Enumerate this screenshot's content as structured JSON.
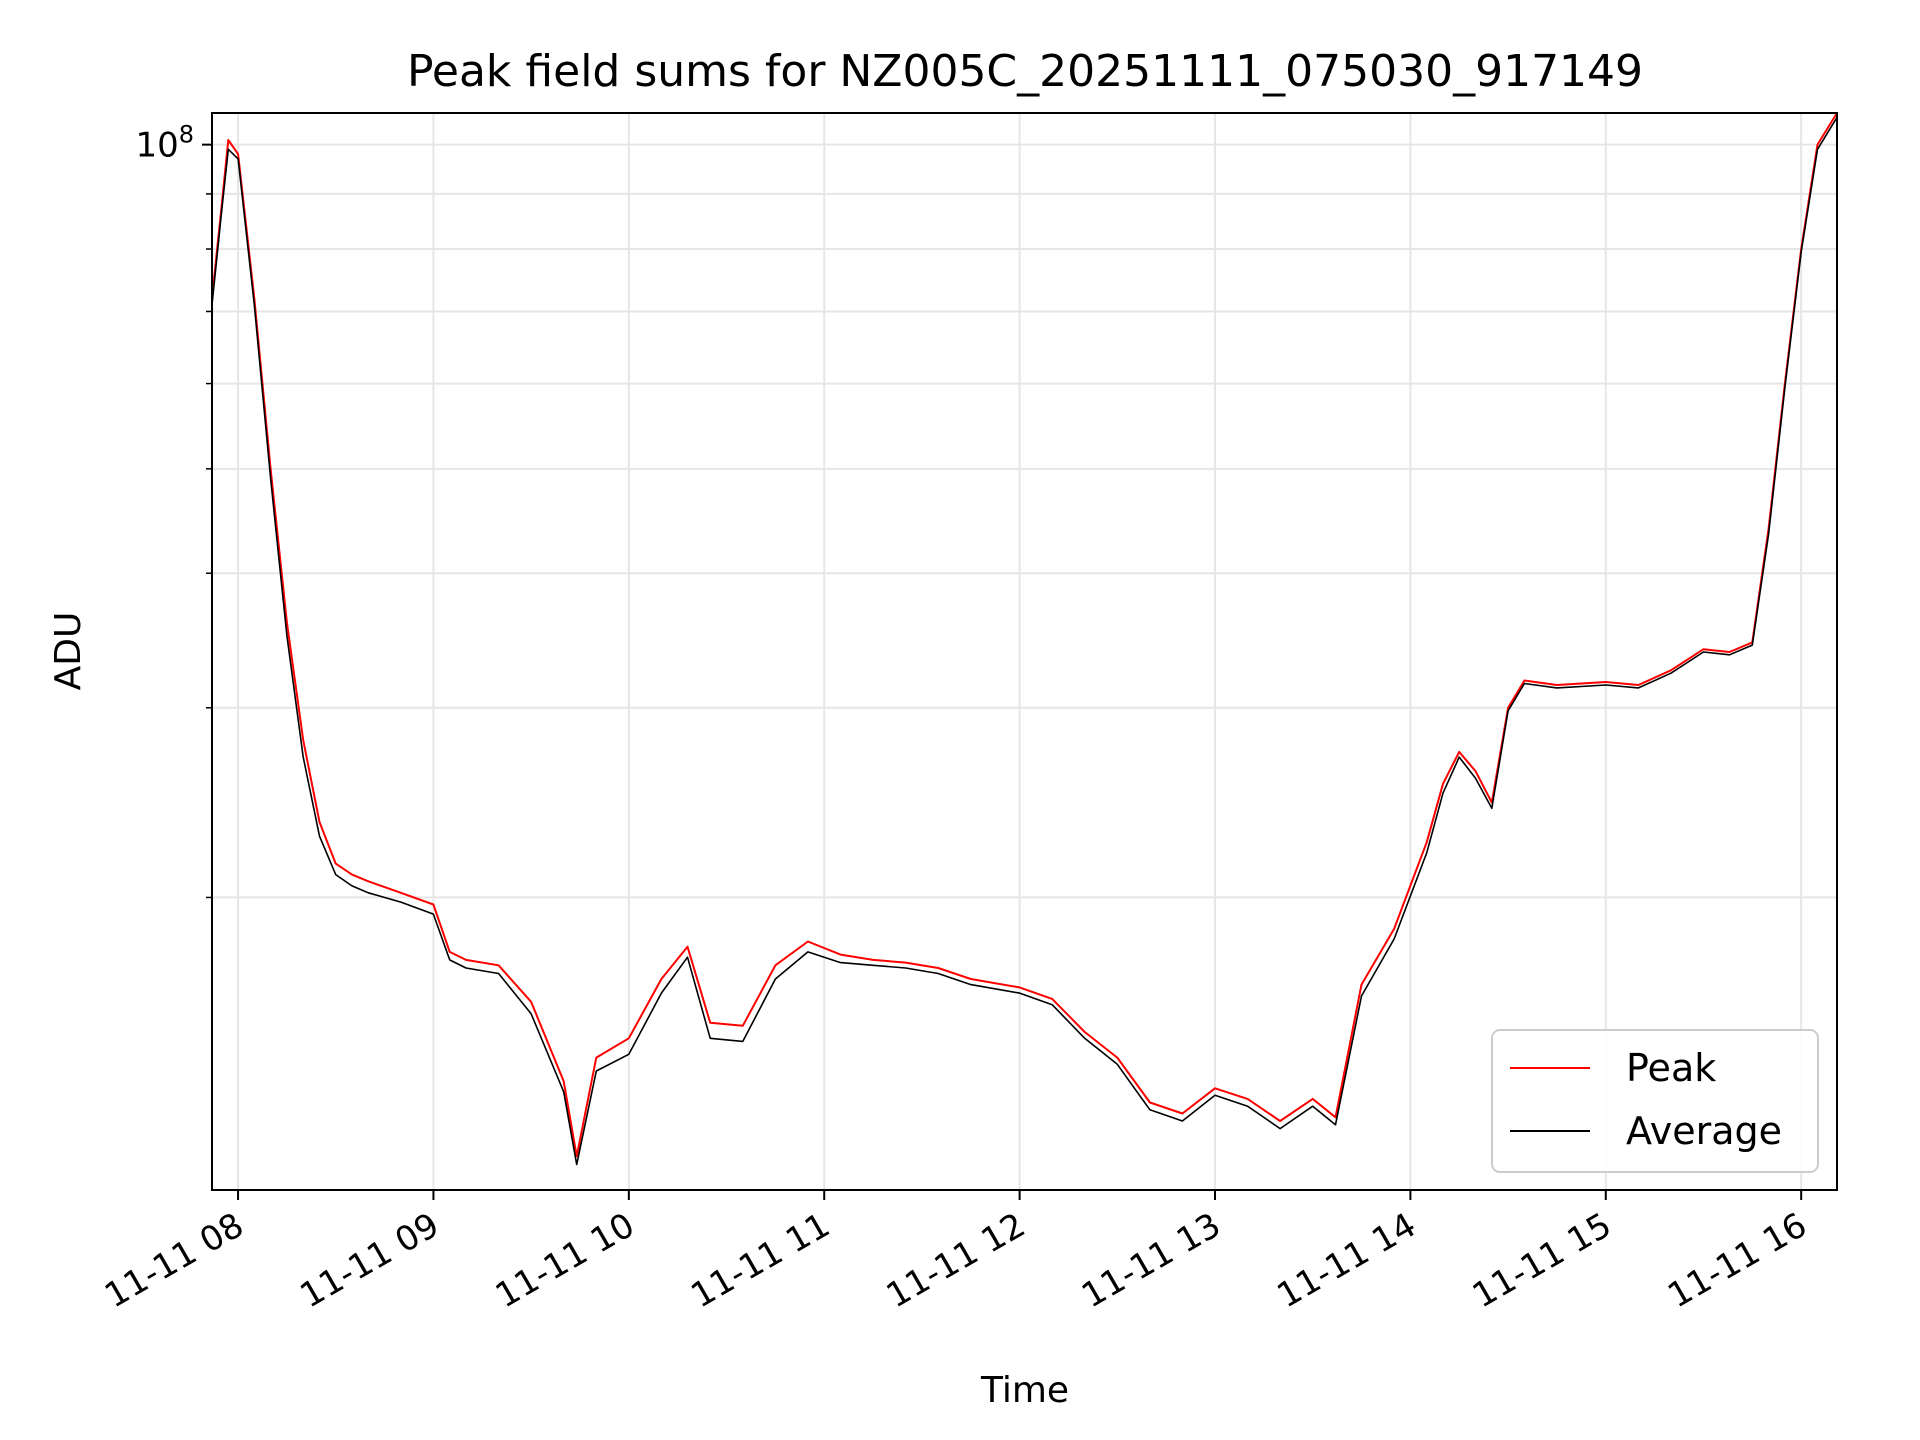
{
  "chart_data": {
    "type": "line",
    "title": "Peak field sums for NZ005C_20251111_075030_917149",
    "xlabel": "Time",
    "ylabel": "ADU",
    "yscale": "log",
    "ylim": [
      10700000,
      107000000
    ],
    "xlim": [
      "2025-11-11 07:52",
      "2025-11-11 16:11"
    ],
    "grid": true,
    "legend_position": "lower-right",
    "x_ticks": [
      "11-11 08",
      "11-11 09",
      "11-11 10",
      "11-11 11",
      "11-11 12",
      "11-11 13",
      "11-11 14",
      "11-11 15",
      "11-11 16"
    ],
    "y_ticks": [
      {
        "base": "10",
        "exp": "8",
        "value": 100000000
      }
    ],
    "series": [
      {
        "name": "Peak",
        "color": "#ff0000",
        "x": [
          "2025-11-11 07:52",
          "2025-11-11 07:55",
          "2025-11-11 07:57",
          "2025-11-11 08:00",
          "2025-11-11 08:05",
          "2025-11-11 08:10",
          "2025-11-11 08:15",
          "2025-11-11 08:20",
          "2025-11-11 08:25",
          "2025-11-11 08:30",
          "2025-11-11 08:35",
          "2025-11-11 08:40",
          "2025-11-11 08:50",
          "2025-11-11 09:00",
          "2025-11-11 09:05",
          "2025-11-11 09:10",
          "2025-11-11 09:20",
          "2025-11-11 09:30",
          "2025-11-11 09:40",
          "2025-11-11 09:44",
          "2025-11-11 09:50",
          "2025-11-11 10:00",
          "2025-11-11 10:10",
          "2025-11-11 10:18",
          "2025-11-11 10:25",
          "2025-11-11 10:35",
          "2025-11-11 10:45",
          "2025-11-11 10:55",
          "2025-11-11 11:05",
          "2025-11-11 11:15",
          "2025-11-11 11:25",
          "2025-11-11 11:35",
          "2025-11-11 11:45",
          "2025-11-11 12:00",
          "2025-11-11 12:10",
          "2025-11-11 12:20",
          "2025-11-11 12:30",
          "2025-11-11 12:40",
          "2025-11-11 12:50",
          "2025-11-11 13:00",
          "2025-11-11 13:10",
          "2025-11-11 13:20",
          "2025-11-11 13:30",
          "2025-11-11 13:37",
          "2025-11-11 13:45",
          "2025-11-11 13:55",
          "2025-11-11 14:05",
          "2025-11-11 14:10",
          "2025-11-11 14:15",
          "2025-11-11 14:20",
          "2025-11-11 14:25",
          "2025-11-11 14:30",
          "2025-11-11 14:35",
          "2025-11-11 14:45",
          "2025-11-11 15:00",
          "2025-11-11 15:10",
          "2025-11-11 15:20",
          "2025-11-11 15:30",
          "2025-11-11 15:38",
          "2025-11-11 15:45",
          "2025-11-11 15:50",
          "2025-11-11 15:55",
          "2025-11-11 16:00",
          "2025-11-11 16:05",
          "2025-11-11 16:11"
        ],
        "values": [
          72000000,
          88000000,
          101000000,
          98000000,
          72000000,
          50000000,
          36000000,
          28000000,
          23500000,
          21500000,
          21000000,
          20700000,
          20200000,
          19700000,
          17800000,
          17500000,
          17300000,
          16000000,
          13500000,
          11500000,
          14200000,
          14800000,
          16800000,
          18000000,
          15300000,
          15200000,
          17300000,
          18200000,
          17700000,
          17500000,
          17400000,
          17200000,
          16800000,
          16500000,
          16100000,
          15000000,
          14200000,
          12900000,
          12600000,
          13300000,
          13000000,
          12400000,
          13000000,
          12500000,
          16600000,
          18700000,
          22500000,
          25500000,
          27300000,
          26200000,
          24500000,
          30000000,
          31800000,
          31500000,
          31700000,
          31500000,
          32500000,
          34000000,
          33800000,
          34500000,
          44000000,
          60000000,
          80000000,
          100000000,
          107000000
        ]
      },
      {
        "name": "Average",
        "color": "#000000",
        "x": [
          "2025-11-11 07:52",
          "2025-11-11 07:55",
          "2025-11-11 07:57",
          "2025-11-11 08:00",
          "2025-11-11 08:05",
          "2025-11-11 08:10",
          "2025-11-11 08:15",
          "2025-11-11 08:20",
          "2025-11-11 08:25",
          "2025-11-11 08:30",
          "2025-11-11 08:35",
          "2025-11-11 08:40",
          "2025-11-11 08:50",
          "2025-11-11 09:00",
          "2025-11-11 09:05",
          "2025-11-11 09:10",
          "2025-11-11 09:20",
          "2025-11-11 09:30",
          "2025-11-11 09:40",
          "2025-11-11 09:44",
          "2025-11-11 09:50",
          "2025-11-11 10:00",
          "2025-11-11 10:10",
          "2025-11-11 10:18",
          "2025-11-11 10:25",
          "2025-11-11 10:35",
          "2025-11-11 10:45",
          "2025-11-11 10:55",
          "2025-11-11 11:05",
          "2025-11-11 11:15",
          "2025-11-11 11:25",
          "2025-11-11 11:35",
          "2025-11-11 11:45",
          "2025-11-11 12:00",
          "2025-11-11 12:10",
          "2025-11-11 12:20",
          "2025-11-11 12:30",
          "2025-11-11 12:40",
          "2025-11-11 12:50",
          "2025-11-11 13:00",
          "2025-11-11 13:10",
          "2025-11-11 13:20",
          "2025-11-11 13:30",
          "2025-11-11 13:37",
          "2025-11-11 13:45",
          "2025-11-11 13:55",
          "2025-11-11 14:05",
          "2025-11-11 14:10",
          "2025-11-11 14:15",
          "2025-11-11 14:20",
          "2025-11-11 14:25",
          "2025-11-11 14:30",
          "2025-11-11 14:35",
          "2025-11-11 14:45",
          "2025-11-11 15:00",
          "2025-11-11 15:10",
          "2025-11-11 15:20",
          "2025-11-11 15:30",
          "2025-11-11 15:38",
          "2025-11-11 15:45",
          "2025-11-11 15:50",
          "2025-11-11 15:55",
          "2025-11-11 16:00",
          "2025-11-11 16:05",
          "2025-11-11 16:11"
        ],
        "values": [
          71000000,
          87000000,
          99000000,
          97000000,
          71000000,
          49000000,
          35000000,
          27000000,
          22800000,
          21000000,
          20500000,
          20200000,
          19800000,
          19300000,
          17500000,
          17200000,
          17000000,
          15600000,
          13200000,
          11300000,
          13800000,
          14300000,
          16300000,
          17600000,
          14800000,
          14700000,
          16800000,
          17800000,
          17400000,
          17300000,
          17200000,
          17000000,
          16600000,
          16300000,
          15900000,
          14800000,
          14000000,
          12700000,
          12400000,
          13100000,
          12800000,
          12200000,
          12800000,
          12300000,
          16200000,
          18300000,
          22000000,
          25000000,
          27000000,
          25800000,
          24200000,
          29800000,
          31600000,
          31300000,
          31500000,
          31300000,
          32300000,
          33800000,
          33600000,
          34300000,
          43500000,
          59500000,
          79500000,
          99000000,
          106000000
        ]
      }
    ]
  }
}
